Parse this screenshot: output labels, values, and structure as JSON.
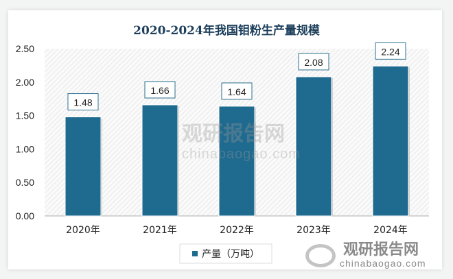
{
  "chart_data": {
    "type": "bar",
    "title": "2020-2024年我国钼粉生产量规模",
    "categories": [
      "2020年",
      "2021年",
      "2022年",
      "2023年",
      "2024年"
    ],
    "series": [
      {
        "name": "产量（万吨）",
        "values": [
          1.48,
          1.66,
          1.64,
          2.08,
          2.24
        ]
      }
    ],
    "ylim": [
      0,
      2.5
    ],
    "yticks": [
      "0.00",
      "0.50",
      "1.00",
      "1.50",
      "2.00",
      "2.50"
    ],
    "xlabel": "",
    "ylabel": "",
    "grid": false,
    "legend": "bottom-center",
    "colors": {
      "bar": "#1f6a8f",
      "title": "#1d3f5c",
      "plot_bg_hatch": "#e3e3e3"
    }
  },
  "watermark": {
    "logo_text": "观研报告网",
    "url": "chinabaogao.com"
  }
}
